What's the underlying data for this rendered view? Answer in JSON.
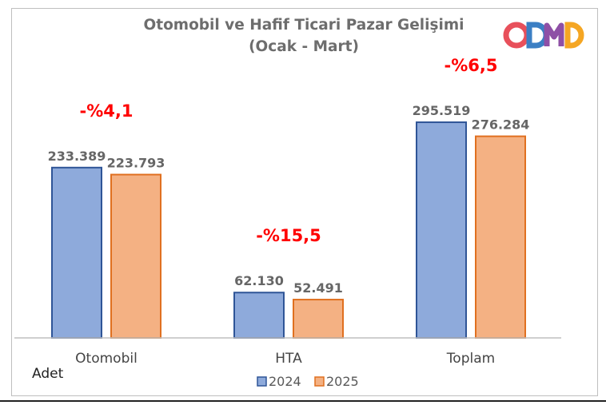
{
  "chart_data": {
    "type": "bar",
    "title": "Otomobil ve Hafif Ticari Pazar Gelişimi",
    "subtitle": "(Ocak - Mart)",
    "categories": [
      "Otomobil",
      "HTA",
      "Toplam"
    ],
    "series": [
      {
        "name": "2024",
        "values": [
          233389,
          62130,
          295519
        ],
        "labels": [
          "233.389",
          "62.130",
          "295.519"
        ],
        "color": "#8eaadb",
        "border": "#2f5597"
      },
      {
        "name": "2025",
        "values": [
          223793,
          52491,
          276284
        ],
        "labels": [
          "223.793",
          "52.491",
          "276.284"
        ],
        "color": "#f4b183",
        "border": "#e07020"
      }
    ],
    "annotations": [
      "-%4,1",
      "-%15,5",
      "-%6,5"
    ],
    "annotation_color": "#ff0000",
    "unit_label": "Adet",
    "legend_position": "bottom",
    "ylim": [
      0,
      370000
    ],
    "grid": false
  },
  "logo": {
    "text": "ODMD",
    "colors": [
      "#e8505b",
      "#3b7fc4",
      "#8e4fa6",
      "#f5a623"
    ]
  }
}
